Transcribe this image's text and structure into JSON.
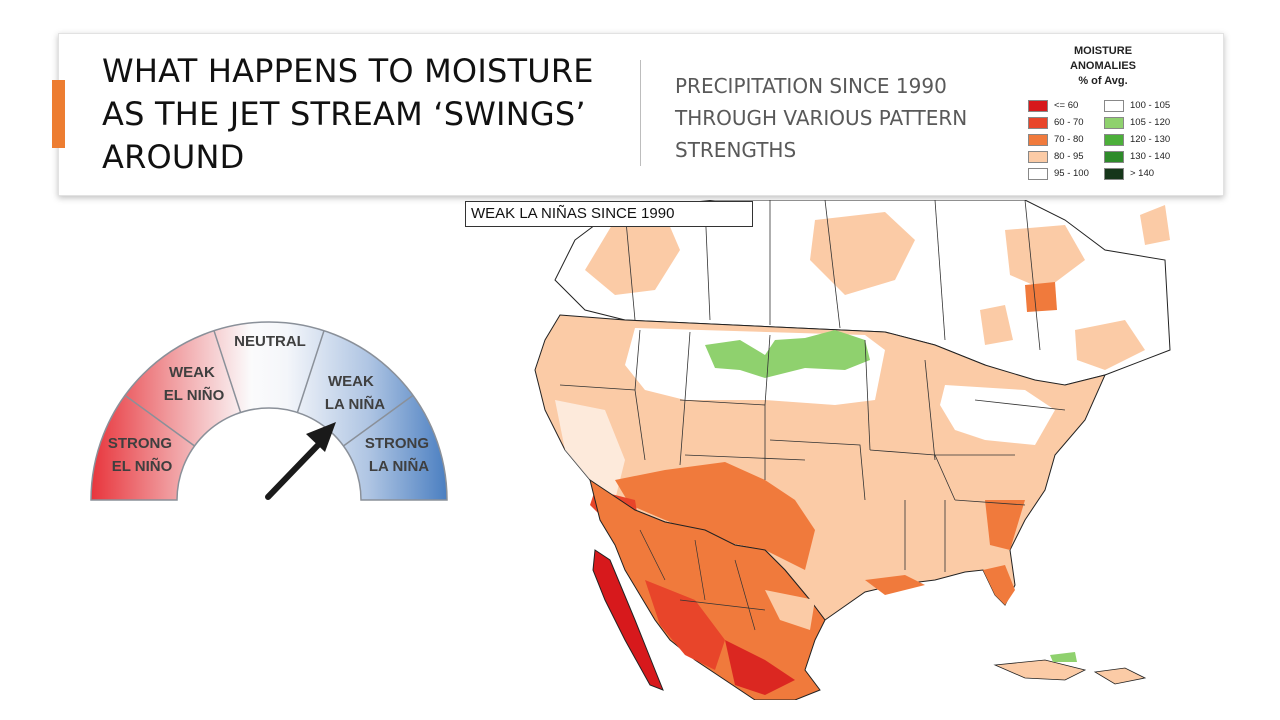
{
  "slide": {
    "title": "WHAT HAPPENS TO MOISTURE AS THE JET STREAM ‘SWINGS’ AROUND",
    "subtitle": "PRECIPITATION SINCE 1990 THROUGH VARIOUS PATTERN STRENGTHS",
    "accent_color": "#ED7D31"
  },
  "legend": {
    "title_lines": [
      "MOISTURE",
      "ANOMALIES",
      "% of Avg."
    ],
    "items": [
      {
        "label": "<= 60",
        "color": "#D7191C"
      },
      {
        "label": "60 - 70",
        "color": "#E8452A"
      },
      {
        "label": "70 - 80",
        "color": "#F07A3C"
      },
      {
        "label": "80 - 95",
        "color": "#FBCBA6"
      },
      {
        "label": "95 - 100",
        "color": "#FFFFFF"
      },
      {
        "label": "100 - 105",
        "color": "#FFFFFF"
      },
      {
        "label": "105 - 120",
        "color": "#8FD16E"
      },
      {
        "label": "120 - 130",
        "color": "#4CAF3A"
      },
      {
        "label": "130 - 140",
        "color": "#2E8B2A"
      },
      {
        "label": "> 140",
        "color": "#16361A"
      }
    ]
  },
  "map": {
    "label": "WEAK LA NIÑAS SINCE 1990"
  },
  "gauge": {
    "segments": [
      {
        "line1": "STRONG",
        "line2": "EL NIÑO",
        "color": "#E8474C"
      },
      {
        "line1": "WEAK",
        "line2": "EL NIÑO",
        "color": "#F2A7AA"
      },
      {
        "line1": "NEUTRAL",
        "line2": "",
        "color": "#F7F8FA"
      },
      {
        "line1": "WEAK",
        "line2": "LA NIÑA",
        "color": "#B9CCE6"
      },
      {
        "line1": "STRONG",
        "line2": "LA NIÑA",
        "color": "#5D8CC8"
      }
    ],
    "pointer_target": "WEAK LA NIÑA",
    "pointer_color": "#1a1a1a"
  }
}
